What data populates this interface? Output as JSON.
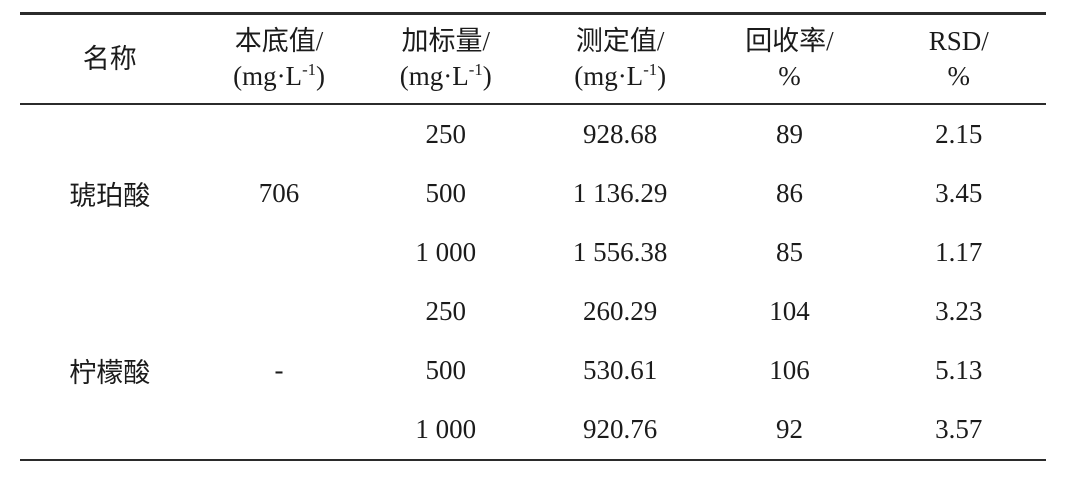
{
  "meta": {
    "background_color": "#ffffff",
    "text_color": "#1b1b1b",
    "rule_color": "#2b2b2b"
  },
  "chart_data": {
    "type": "table",
    "columns": [
      {
        "title": "名称",
        "unit_pre": "",
        "unit_sup": "",
        "unit_post": ""
      },
      {
        "title": "本底值/",
        "unit_pre": "(mg·L",
        "unit_sup": "-1",
        "unit_post": ")"
      },
      {
        "title": "加标量/",
        "unit_pre": "(mg·L",
        "unit_sup": "-1",
        "unit_post": ")"
      },
      {
        "title": "测定值/",
        "unit_pre": "(mg·L",
        "unit_sup": "-1",
        "unit_post": ")"
      },
      {
        "title": "回收率/",
        "unit_pre": "%",
        "unit_sup": "",
        "unit_post": ""
      },
      {
        "title": "RSD/",
        "unit_pre": "%",
        "unit_sup": "",
        "unit_post": ""
      }
    ],
    "groups": [
      {
        "name": "琥珀酸",
        "background_value": "706",
        "rows": [
          {
            "spike": "250",
            "measured": "928.68",
            "recovery": "89",
            "rsd": "2.15"
          },
          {
            "spike": "500",
            "measured": "1 136.29",
            "recovery": "86",
            "rsd": "3.45"
          },
          {
            "spike": "1 000",
            "measured": "1 556.38",
            "recovery": "85",
            "rsd": "1.17"
          }
        ]
      },
      {
        "name": "柠檬酸",
        "background_value": "-",
        "rows": [
          {
            "spike": "250",
            "measured": "260.29",
            "recovery": "104",
            "rsd": "3.23"
          },
          {
            "spike": "500",
            "measured": "530.61",
            "recovery": "106",
            "rsd": "5.13"
          },
          {
            "spike": "1 000",
            "measured": "920.76",
            "recovery": "92",
            "rsd": "3.57"
          }
        ]
      }
    ]
  }
}
